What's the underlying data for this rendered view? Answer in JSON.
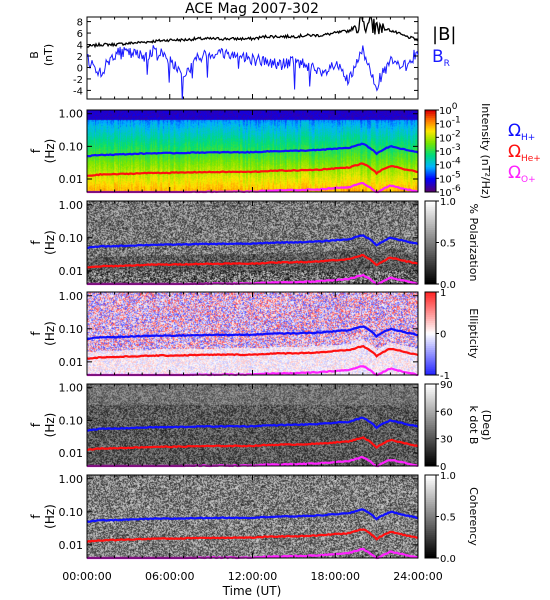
{
  "title": "ACE Mag 2007-302",
  "x_axis": {
    "label": "Time (UT)",
    "ticks": [
      "00:00:00",
      "06:00:00",
      "12:00:00",
      "18:00:00",
      "24:00:00"
    ]
  },
  "colors": {
    "B_total": "#000000",
    "B_R": "#1a1aff",
    "H": "#1010ff",
    "He": "#ff1010",
    "O": "#ff22ff"
  },
  "chart_data": [
    {
      "type": "line",
      "panel": "B",
      "ylabel": "B",
      "yunit": "(nT)",
      "ylim": [
        -5.5,
        8.8
      ],
      "yticks": [
        "-4",
        "-2",
        "0",
        "2",
        "4",
        "6",
        "8"
      ],
      "x_hours": [
        0,
        1,
        2,
        3,
        4,
        5,
        6,
        7,
        8,
        9,
        10,
        11,
        12,
        13,
        14,
        15,
        16,
        17,
        18,
        19,
        20,
        21,
        22,
        23,
        24
      ],
      "series": [
        {
          "name": "|B|",
          "values": [
            3.6,
            4.0,
            4.0,
            4.2,
            4.4,
            4.6,
            4.8,
            4.8,
            5.0,
            5.0,
            5.0,
            5.0,
            5.0,
            5.4,
            5.4,
            5.4,
            5.6,
            5.6,
            6.0,
            6.4,
            8.0,
            7.0,
            6.5,
            5.5,
            4.8
          ]
        },
        {
          "name": "B_R",
          "values": [
            1.5,
            -1.0,
            2.5,
            2.5,
            2.0,
            3.0,
            1.5,
            -1.5,
            1.5,
            2.5,
            2.5,
            2.0,
            1.5,
            1.0,
            0.5,
            1.0,
            0.5,
            -1.5,
            0.5,
            -2.5,
            3.0,
            -3.0,
            1.0,
            0.0,
            3.0
          ]
        }
      ],
      "legend": [
        {
          "text": "|B|",
          "color": "#000000"
        },
        {
          "text": "B",
          "sub": "R",
          "color": "#1a1aff"
        }
      ]
    },
    {
      "type": "heatmap",
      "panel": "Intensity",
      "ylabel": "f",
      "yunit": "(Hz)",
      "yscale": "log",
      "ylim": [
        0.004,
        1.3
      ],
      "yticks": [
        "1.00",
        "0.10",
        "0.01"
      ],
      "colorbar": {
        "label": "Intensity (nT²/Hz)",
        "range": [
          -6.5,
          0
        ],
        "ticks": [
          {
            "base": "10",
            "exp": "0"
          },
          {
            "base": "10",
            "exp": "-1"
          },
          {
            "base": "10",
            "exp": "-2"
          },
          {
            "base": "10",
            "exp": "-3"
          },
          {
            "base": "10",
            "exp": "-4"
          },
          {
            "base": "10",
            "exp": "-5"
          },
          {
            "base": "10",
            "exp": "-6"
          }
        ]
      },
      "legend": [
        {
          "text": "Ω",
          "sub": "H+",
          "color": "#1010ff"
        },
        {
          "text": "Ω",
          "sub": "He+",
          "color": "#ff1010"
        },
        {
          "text": "Ω",
          "sub": "O+",
          "color": "#ff22ff"
        }
      ]
    },
    {
      "type": "heatmap",
      "panel": "Polarization",
      "ylabel": "f",
      "yunit": "(Hz)",
      "yscale": "log",
      "ylim": [
        0.004,
        1.3
      ],
      "yticks": [
        "1.00",
        "0.10",
        "0.01"
      ],
      "colorbar": {
        "label": "% Polarization",
        "range": [
          0,
          1
        ],
        "ticks": [
          "1.0",
          "0.5",
          "0.0"
        ]
      }
    },
    {
      "type": "heatmap",
      "panel": "Ellipticity",
      "ylabel": "f",
      "yunit": "(Hz)",
      "yscale": "log",
      "ylim": [
        0.004,
        1.3
      ],
      "yticks": [
        "1.00",
        "0.10",
        "0.01"
      ],
      "colorbar": {
        "label": "Ellipticity",
        "range": [
          -1,
          1
        ],
        "ticks": [
          "1",
          "0",
          "-1"
        ]
      }
    },
    {
      "type": "heatmap",
      "panel": "k dot B",
      "ylabel": "f",
      "yunit": "(Hz)",
      "yscale": "log",
      "ylim": [
        0.004,
        1.3
      ],
      "yticks": [
        "1.00",
        "0.10",
        "0.01"
      ],
      "colorbar": {
        "label": "k dot B",
        "unit": "(Deg)",
        "range": [
          0,
          90
        ],
        "ticks": [
          "90",
          "60",
          "30",
          "0"
        ]
      }
    },
    {
      "type": "heatmap",
      "panel": "Coherency",
      "ylabel": "f",
      "yunit": "(Hz)",
      "yscale": "log",
      "ylim": [
        0.004,
        1.3
      ],
      "yticks": [
        "1.00",
        "0.10",
        "0.01"
      ],
      "colorbar": {
        "label": "Coherency",
        "range": [
          0,
          1
        ],
        "ticks": [
          "1.0",
          "0.5",
          "0.0"
        ]
      }
    }
  ],
  "gyrofrequency_lines": {
    "x_hours": [
      0,
      1,
      2,
      3,
      4,
      5,
      6,
      7,
      8,
      9,
      10,
      11,
      12,
      13,
      14,
      15,
      16,
      17,
      18,
      19,
      20,
      21,
      22,
      23,
      24
    ],
    "H": [
      0.05,
      0.055,
      0.056,
      0.058,
      0.06,
      0.062,
      0.062,
      0.063,
      0.065,
      0.065,
      0.066,
      0.066,
      0.066,
      0.07,
      0.072,
      0.073,
      0.075,
      0.078,
      0.085,
      0.09,
      0.12,
      0.06,
      0.1,
      0.08,
      0.065
    ]
  }
}
